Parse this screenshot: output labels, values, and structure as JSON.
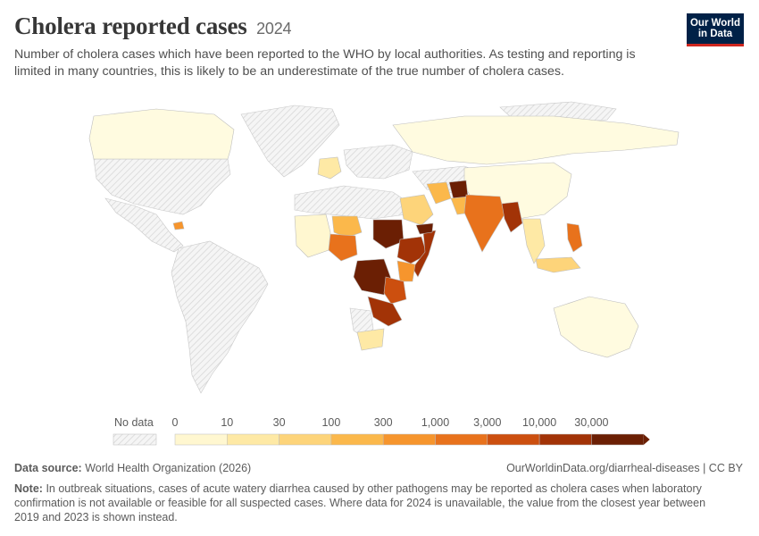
{
  "header": {
    "title": "Cholera reported cases",
    "year": "2024",
    "subtitle": "Number of cholera cases which have been reported to the WHO by local authorities. As testing and reporting is limited in many countries, this is likely to be an underestimate of the true number of cholera cases."
  },
  "logo": {
    "line1": "Our World",
    "line2": "in Data"
  },
  "legend": {
    "no_data_label": "No data",
    "ticks": [
      "0",
      "10",
      "30",
      "100",
      "300",
      "1,000",
      "3,000",
      "10,000",
      "30,000"
    ],
    "colors": [
      "#fff7d0",
      "#fee9a5",
      "#fdd47a",
      "#fbb84b",
      "#f6952d",
      "#e8721c",
      "#cc4f0f",
      "#a23307",
      "#6b1f04"
    ]
  },
  "map_data": {
    "no_data_color": "#e3e3e3",
    "countries": [
      {
        "name": "Haiti",
        "bin": 4
      },
      {
        "name": "Nigeria",
        "bin": 5
      },
      {
        "name": "Niger",
        "bin": 3
      },
      {
        "name": "Sudan",
        "bin": 8
      },
      {
        "name": "South Sudan",
        "bin": 7
      },
      {
        "name": "Ethiopia",
        "bin": 7
      },
      {
        "name": "Somalia",
        "bin": 7
      },
      {
        "name": "Kenya",
        "bin": 5
      },
      {
        "name": "DR Congo",
        "bin": 8
      },
      {
        "name": "Tanzania",
        "bin": 6
      },
      {
        "name": "Zambia",
        "bin": 7
      },
      {
        "name": "Mozambique",
        "bin": 6
      },
      {
        "name": "Malawi",
        "bin": 6
      },
      {
        "name": "Zimbabwe",
        "bin": 7
      },
      {
        "name": "Yemen",
        "bin": 8
      },
      {
        "name": "Afghanistan",
        "bin": 8
      },
      {
        "name": "Pakistan",
        "bin": 4
      },
      {
        "name": "India",
        "bin": 5
      },
      {
        "name": "Bangladesh",
        "bin": 6
      },
      {
        "name": "Myanmar",
        "bin": 7
      },
      {
        "name": "Philippines",
        "bin": 5
      },
      {
        "name": "Iran",
        "bin": 3
      },
      {
        "name": "Saudi Arabia",
        "bin": 2
      },
      {
        "name": "France",
        "bin": 2
      },
      {
        "name": "China",
        "bin": 0
      },
      {
        "name": "Russia",
        "bin": 0
      },
      {
        "name": "Canada",
        "bin": 0
      },
      {
        "name": "Australia",
        "bin": 0
      },
      {
        "name": "South Africa",
        "bin": 1
      }
    ]
  },
  "footer": {
    "source_label": "Data source:",
    "source_text": "World Health Organization (2026)",
    "url": "OurWorldinData.org/diarrheal-diseases | CC BY",
    "note_label": "Note:",
    "note_text": "In outbreak situations, cases of acute watery diarrhea caused by other pathogens may be reported as cholera cases when laboratory confirmation is not available or feasible for all suspected cases. Where data for 2024 is unavailable, the value from the closest year between 2019 and 2023 is shown instead."
  }
}
